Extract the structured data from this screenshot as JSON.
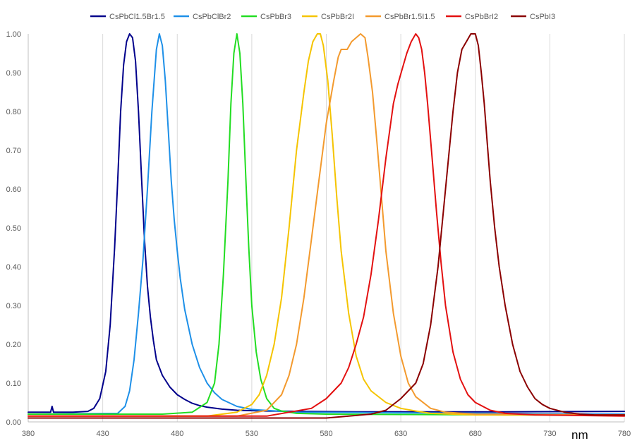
{
  "chart_data": {
    "type": "line",
    "xlabel": "nm",
    "ylabel": "",
    "xlim": [
      380,
      780
    ],
    "ylim": [
      0,
      1
    ],
    "x_ticks": [
      380,
      430,
      480,
      530,
      580,
      630,
      680,
      730,
      780
    ],
    "x_tick_labels": [
      "380",
      "430",
      "480",
      "530",
      "580",
      "630",
      "680",
      "730",
      "780"
    ],
    "y_ticks": [
      0,
      0.1,
      0.2,
      0.3,
      0.4,
      0.5,
      0.6,
      0.7,
      0.8,
      0.9,
      1.0
    ],
    "y_tick_labels": [
      "0.00",
      "0.10",
      "0.20",
      "0.30",
      "0.40",
      "0.50",
      "0.60",
      "0.70",
      "0.80",
      "0.90",
      "1.00"
    ],
    "grid": "vertical",
    "legend_position": "top",
    "series": [
      {
        "name": "CsPbCl1.5Br1.5",
        "color": "#00008b",
        "x": [
          380,
          395,
          396,
          397,
          410,
          420,
          424,
          428,
          432,
          435,
          438,
          440,
          442,
          444,
          446,
          448,
          450,
          452,
          454,
          456,
          458,
          460,
          462,
          464,
          466,
          470,
          475,
          480,
          485,
          490,
          495,
          500,
          510,
          520,
          540,
          600,
          700,
          780
        ],
        "y": [
          0.025,
          0.025,
          0.04,
          0.025,
          0.025,
          0.027,
          0.035,
          0.06,
          0.13,
          0.25,
          0.45,
          0.62,
          0.8,
          0.92,
          0.98,
          1.0,
          0.99,
          0.93,
          0.8,
          0.63,
          0.47,
          0.35,
          0.27,
          0.21,
          0.16,
          0.12,
          0.09,
          0.07,
          0.058,
          0.048,
          0.042,
          0.038,
          0.033,
          0.03,
          0.028,
          0.026,
          0.026,
          0.027
        ]
      },
      {
        "name": "CsPbClBr2",
        "color": "#1e90e8",
        "x": [
          380,
          440,
          445,
          448,
          451,
          454,
          457,
          460,
          463,
          466,
          468,
          470,
          472,
          474,
          476,
          478,
          480,
          482,
          485,
          490,
          495,
          500,
          505,
          510,
          520,
          530,
          560,
          700,
          780
        ],
        "y": [
          0.02,
          0.022,
          0.04,
          0.08,
          0.16,
          0.28,
          0.42,
          0.6,
          0.8,
          0.96,
          1.0,
          0.97,
          0.88,
          0.75,
          0.62,
          0.52,
          0.44,
          0.37,
          0.29,
          0.2,
          0.14,
          0.1,
          0.075,
          0.058,
          0.04,
          0.032,
          0.025,
          0.022,
          0.02
        ]
      },
      {
        "name": "CsPbBr3",
        "color": "#22dd22",
        "x": [
          380,
          470,
          490,
          500,
          505,
          508,
          511,
          514,
          516,
          518,
          520,
          522,
          524,
          526,
          528,
          530,
          533,
          536,
          540,
          545,
          550,
          560,
          580,
          700,
          780
        ],
        "y": [
          0.02,
          0.02,
          0.025,
          0.05,
          0.1,
          0.2,
          0.38,
          0.62,
          0.82,
          0.95,
          1.0,
          0.95,
          0.82,
          0.63,
          0.45,
          0.3,
          0.18,
          0.11,
          0.06,
          0.035,
          0.028,
          0.022,
          0.02,
          0.018,
          0.018
        ]
      },
      {
        "name": "CsPbBr2I",
        "color": "#f5c400",
        "x": [
          380,
          500,
          520,
          530,
          535,
          540,
          545,
          550,
          555,
          560,
          565,
          568,
          571,
          574,
          576,
          578,
          581,
          584,
          587,
          590,
          595,
          600,
          605,
          610,
          620,
          630,
          640,
          650,
          680,
          780
        ],
        "y": [
          0.015,
          0.015,
          0.025,
          0.045,
          0.07,
          0.12,
          0.2,
          0.32,
          0.5,
          0.7,
          0.85,
          0.93,
          0.98,
          1.0,
          1.0,
          0.97,
          0.88,
          0.74,
          0.58,
          0.44,
          0.28,
          0.17,
          0.11,
          0.08,
          0.05,
          0.035,
          0.028,
          0.022,
          0.018,
          0.018
        ]
      },
      {
        "name": "CsPbBr1.5I1.5",
        "color": "#f39a2e",
        "x": [
          380,
          520,
          540,
          550,
          555,
          560,
          565,
          570,
          575,
          580,
          585,
          588,
          590,
          592,
          594,
          597,
          600,
          603,
          606,
          608,
          611,
          614,
          617,
          620,
          625,
          630,
          635,
          640,
          650,
          660,
          680,
          780
        ],
        "y": [
          0.015,
          0.015,
          0.03,
          0.07,
          0.12,
          0.2,
          0.32,
          0.47,
          0.62,
          0.77,
          0.88,
          0.94,
          0.96,
          0.96,
          0.96,
          0.98,
          0.99,
          1.0,
          0.99,
          0.94,
          0.85,
          0.72,
          0.58,
          0.44,
          0.28,
          0.17,
          0.1,
          0.065,
          0.035,
          0.025,
          0.02,
          0.018
        ]
      },
      {
        "name": "CsPbBrI2",
        "color": "#e31010",
        "x": [
          380,
          540,
          570,
          580,
          590,
          595,
          600,
          605,
          610,
          615,
          620,
          625,
          628,
          631,
          634,
          637,
          640,
          642,
          644,
          646,
          648,
          651,
          654,
          657,
          660,
          665,
          670,
          675,
          680,
          690,
          700,
          720,
          780
        ],
        "y": [
          0.015,
          0.015,
          0.035,
          0.06,
          0.1,
          0.14,
          0.2,
          0.27,
          0.38,
          0.52,
          0.68,
          0.82,
          0.87,
          0.91,
          0.95,
          0.98,
          1.0,
          0.99,
          0.96,
          0.9,
          0.82,
          0.68,
          0.54,
          0.41,
          0.3,
          0.18,
          0.11,
          0.07,
          0.05,
          0.03,
          0.022,
          0.018,
          0.015
        ]
      },
      {
        "name": "CsPbI3",
        "color": "#8b0000",
        "x": [
          380,
          580,
          610,
          620,
          630,
          640,
          645,
          650,
          655,
          660,
          665,
          668,
          671,
          674,
          677,
          680,
          682,
          684,
          686,
          688,
          690,
          693,
          696,
          700,
          705,
          710,
          715,
          720,
          725,
          730,
          740,
          750,
          760,
          780
        ],
        "y": [
          0.01,
          0.01,
          0.02,
          0.03,
          0.06,
          0.1,
          0.15,
          0.25,
          0.4,
          0.6,
          0.8,
          0.9,
          0.96,
          0.98,
          1.0,
          1.0,
          0.97,
          0.9,
          0.82,
          0.72,
          0.62,
          0.5,
          0.4,
          0.3,
          0.2,
          0.13,
          0.09,
          0.06,
          0.045,
          0.035,
          0.025,
          0.02,
          0.018,
          0.018
        ]
      }
    ]
  }
}
